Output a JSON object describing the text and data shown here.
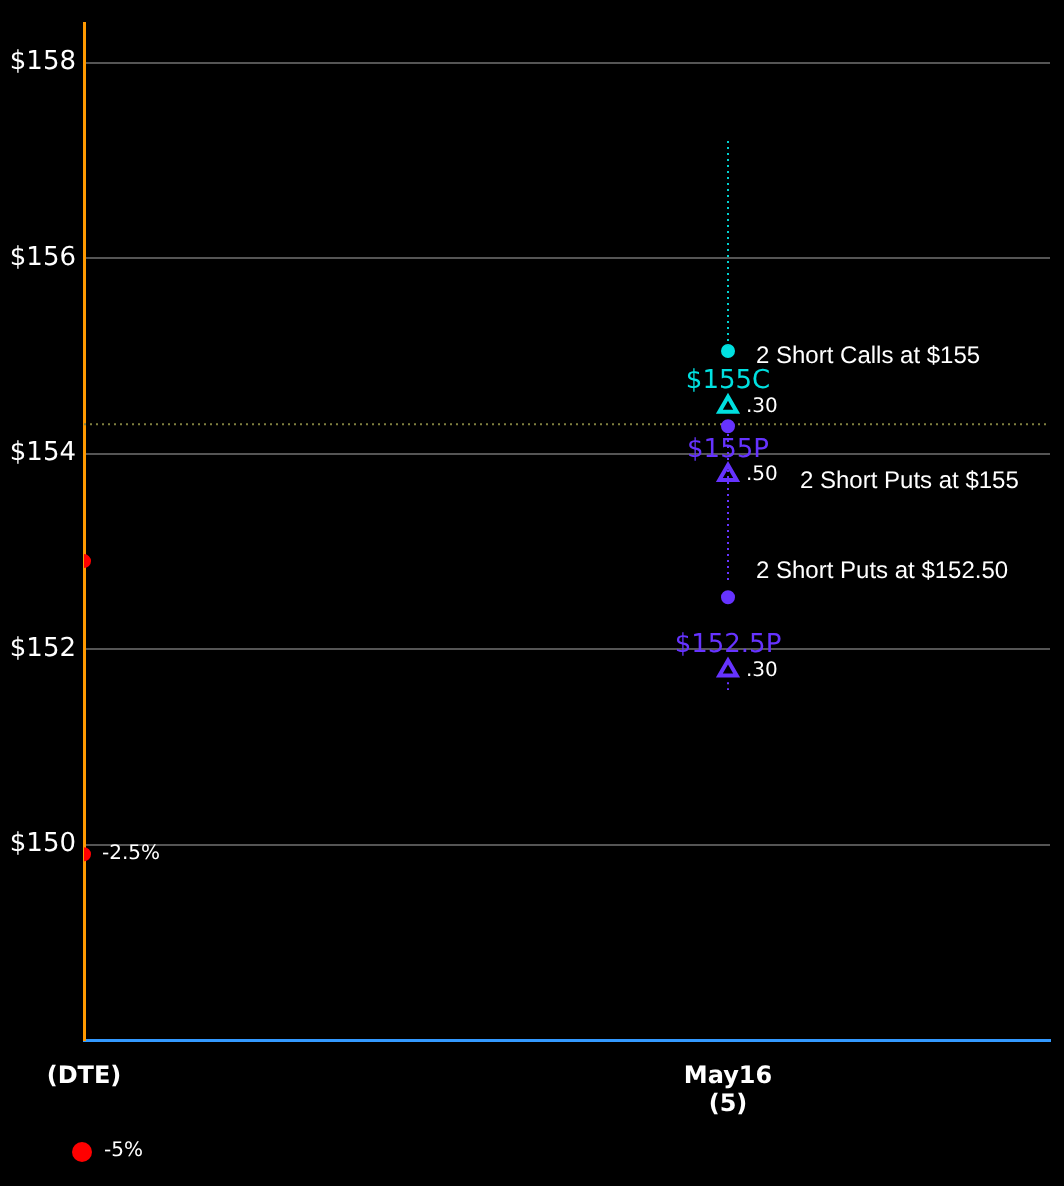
{
  "chart_data": {
    "type": "scatter",
    "categories": [
      "(DTE)",
      null,
      "May16\n(5)",
      null
    ],
    "ylim": [
      148,
      158.4
    ],
    "yticks": [
      {
        "value": 150,
        "label": "$150"
      },
      {
        "value": 152,
        "label": "$152"
      },
      {
        "value": 154,
        "label": "$154"
      },
      {
        "value": 156,
        "label": "$156"
      },
      {
        "value": 158,
        "label": "$158"
      }
    ],
    "grid": "y",
    "legend": false,
    "ref_lines": [
      {
        "axis": "y",
        "value": 154.3,
        "color": "#808040",
        "line_style": "dotted"
      }
    ],
    "series": [
      {
        "type": "line",
        "color": "#00d0d0",
        "line_style": "dotted",
        "marker": "none",
        "x": [
          "May16\n(5)",
          "May16\n(5)"
        ],
        "values": [
          157.2,
          155.1
        ]
      },
      {
        "type": "line",
        "color": "#6633ff",
        "line_style": "dotted",
        "marker": "none",
        "x": [
          "May16\n(5)",
          "May16\n(5)"
        ],
        "values": [
          154.2,
          152.7
        ]
      },
      {
        "type": "line",
        "color": "#6633ff",
        "line_style": "dotted",
        "marker": "none",
        "x": [
          "May16\n(5)",
          "May16\n(5)"
        ],
        "values": [
          151.66,
          151.58
        ]
      },
      {
        "name": "$155C",
        "type": "scatter",
        "color": "#00e0e0",
        "marker": "triangle",
        "x": [
          "May16\n(5)"
        ],
        "values": [
          154.48
        ]
      },
      {
        "name": "$155P",
        "type": "scatter",
        "color": "#6633ff",
        "marker": "triangle",
        "x": [
          "May16\n(5)"
        ],
        "values": [
          153.78
        ]
      },
      {
        "name": "$152.5P",
        "type": "scatter",
        "color": "#6633ff",
        "marker": "triangle",
        "x": [
          "May16\n(5)"
        ],
        "values": [
          151.78
        ]
      },
      {
        "type": "scatter",
        "color": "#00e0e0",
        "marker": "circle",
        "x": [
          "May16\n(5)"
        ],
        "values": [
          155.05
        ]
      },
      {
        "type": "scatter",
        "color": "#6633ff",
        "marker": "circle",
        "x": [
          "May16\n(5)",
          "May16\n(5)"
        ],
        "values": [
          154.28,
          152.53
        ]
      },
      {
        "type": "scatter",
        "color": "#ff0000",
        "marker": "circle",
        "x": [
          "(DTE)",
          "(DTE)"
        ],
        "values": [
          152.9,
          149.9
        ]
      }
    ],
    "annotations": [
      "-5%",
      {
        "text": "-2.5%",
        "x": "(DTE)",
        "y": 149.9
      },
      {
        "text": ".30",
        "x": "May16\n(5)",
        "y": 154.48
      },
      {
        "text": ".50",
        "x": "May16\n(5)",
        "y": 153.78
      },
      {
        "text": ".30",
        "x": "May16\n(5)",
        "y": 151.78
      },
      {
        "text": "2 Short Calls at $155",
        "x": "May16\n(5)",
        "y": 155
      },
      {
        "text": "2 Short Puts at $155",
        "x": "May16\n(5)",
        "y": 153.72
      },
      {
        "text": "2 Short Puts at $152.50",
        "x": "May16\n(5)",
        "y": 152.8
      }
    ]
  }
}
